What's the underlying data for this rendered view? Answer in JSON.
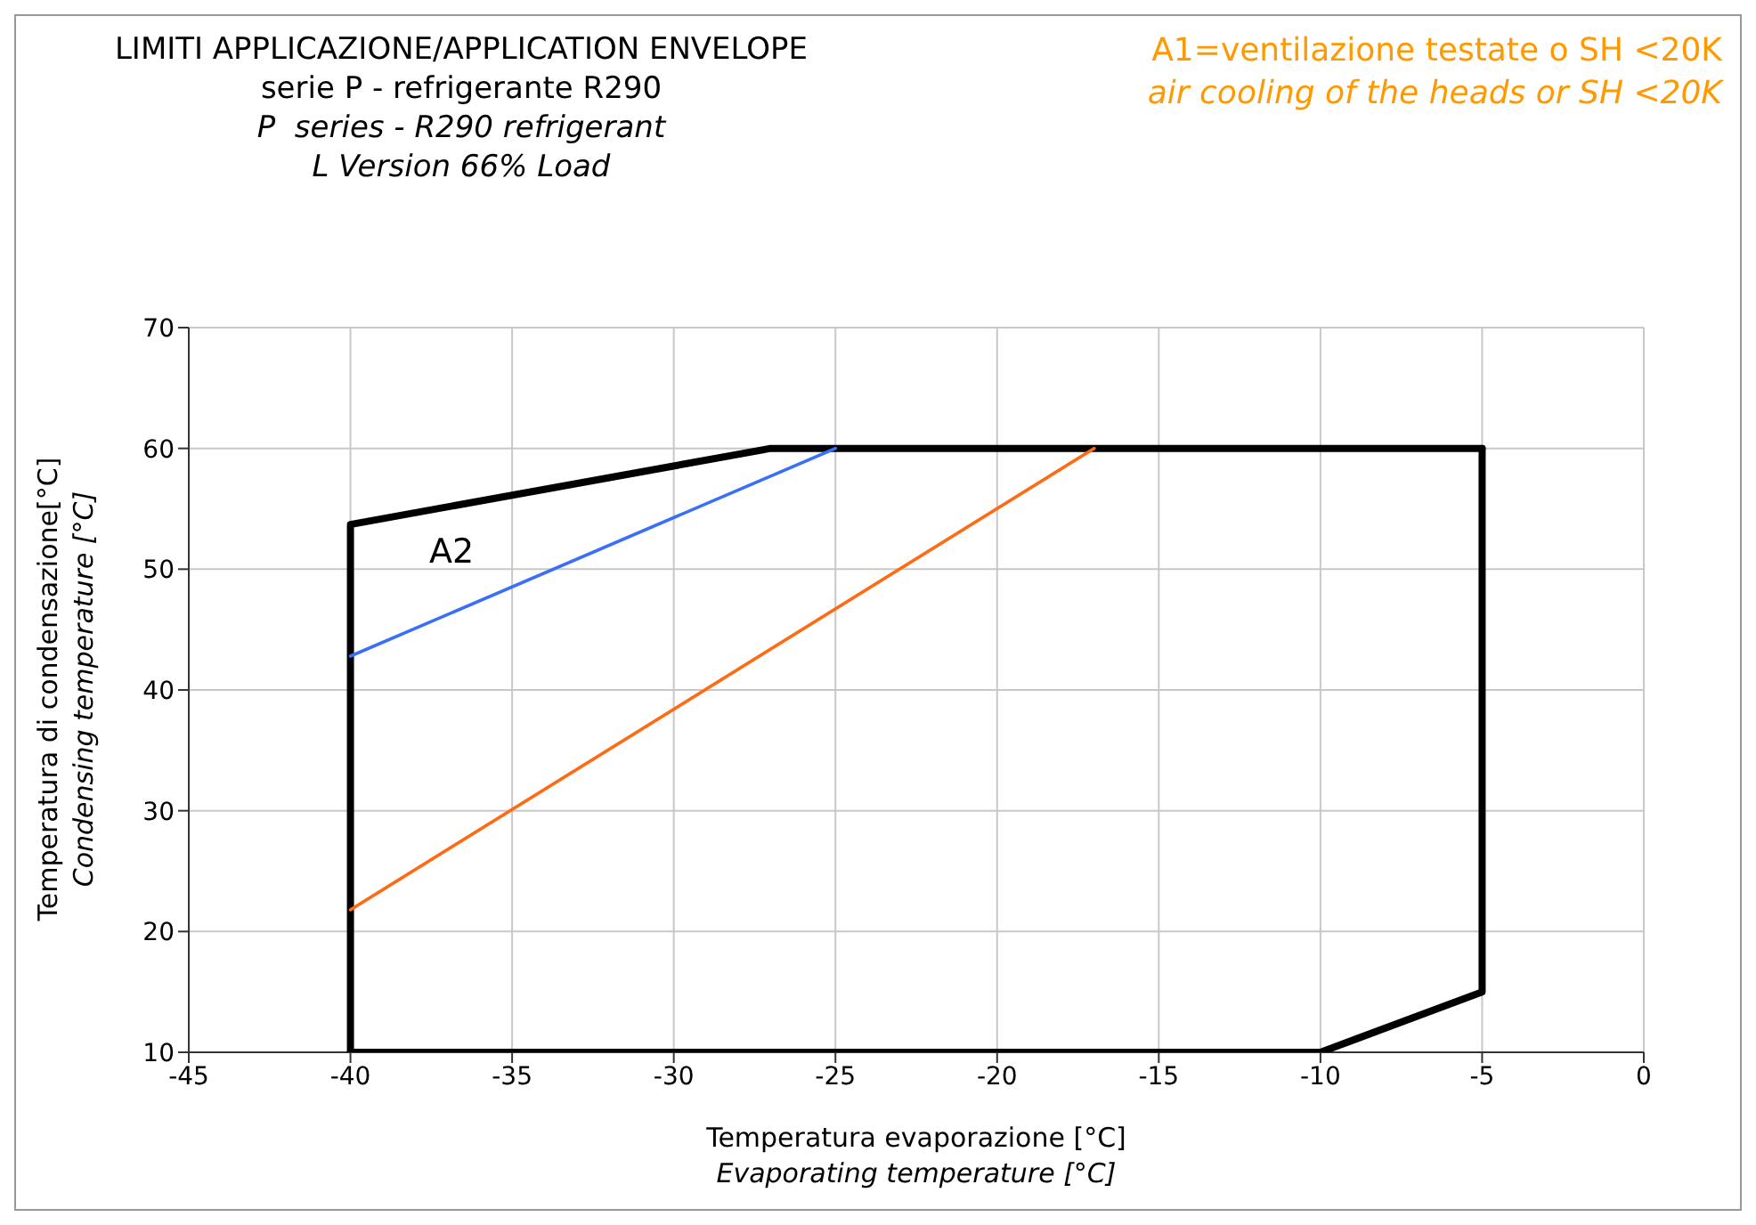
{
  "chart_data": {
    "type": "line",
    "title": "LIMITI APPLICAZIONE/APPLICATION ENVELOPE",
    "subtitle": "serie P - refrigerante R290\nP  series - R290 refrigerant\nL Version 66% Load",
    "xlabel": "Temperatura evaporazione [°C]\nEvaporating temperature [°C]",
    "ylabel": "Temperatura di condensazione[°C]\nCondensing temperature [°C]",
    "annotations": [
      "A1=ventilazione testate o SH <20K\nair cooling of the heads or SH <20K",
      "A2"
    ],
    "series": [
      {
        "color": "#000000",
        "x": [
          -40,
          -40,
          -27,
          -5
        ],
        "values": [
          10,
          53.7,
          60,
          60
        ]
      },
      {
        "color": "#000000",
        "x": [
          -40,
          -10,
          -5,
          -5
        ],
        "values": [
          10,
          10,
          15,
          60
        ]
      },
      {
        "color": "#3a6ff7",
        "x": [
          -40,
          -25
        ],
        "values": [
          42.8,
          60
        ]
      },
      {
        "color": "#ff6a13",
        "x": [
          -40,
          -17
        ],
        "values": [
          21.8,
          60
        ]
      }
    ],
    "xlim": [
      -45,
      0
    ],
    "xticks": [
      -45,
      -40,
      -35,
      -30,
      -25,
      -20,
      -15,
      -10,
      -5,
      0
    ],
    "ylim": [
      10,
      70
    ],
    "yticks": [
      10,
      20,
      30,
      40,
      50,
      60,
      70
    ],
    "grid": true,
    "marker": "none",
    "line_style": "solid"
  }
}
